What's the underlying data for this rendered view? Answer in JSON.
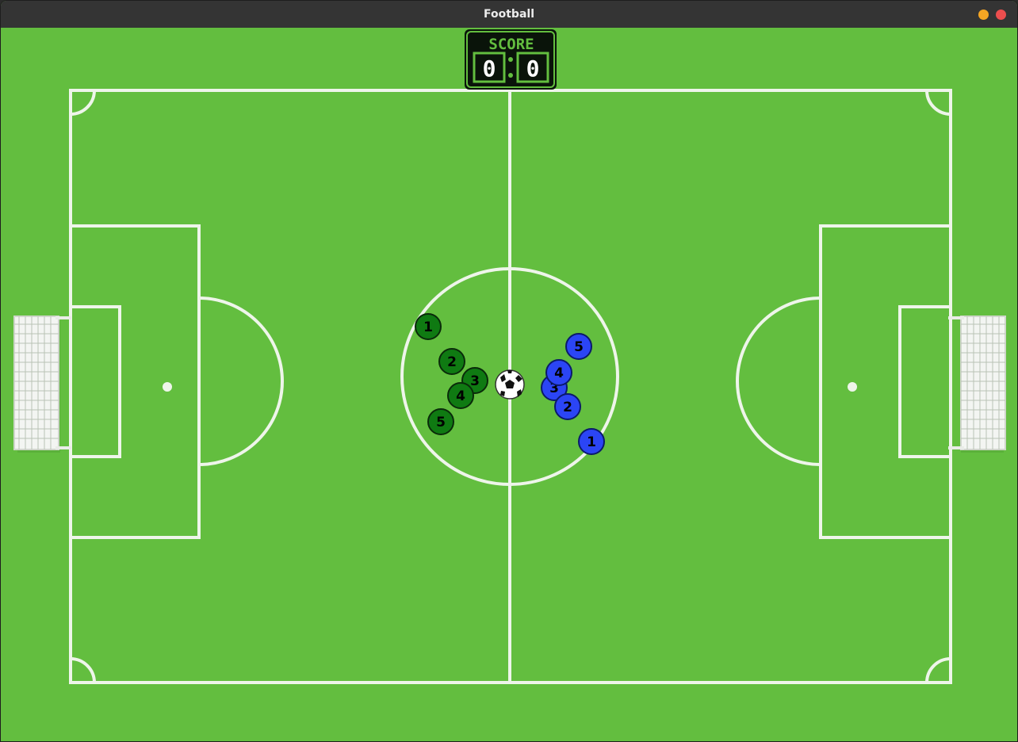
{
  "window": {
    "title": "Football",
    "controls": [
      {
        "name": "minimize",
        "color": "#f5a623"
      },
      {
        "name": "close",
        "color": "#ec4e4e"
      }
    ]
  },
  "scoreboard": {
    "label": "SCORE",
    "home": "0",
    "away": "0",
    "separator": ":"
  },
  "colors": {
    "grass": "#63be3f",
    "lines": "#eef5ea",
    "home_team": "#0f7a12",
    "away_team": "#2b45f5",
    "scoreboard_bg": "#0a140a",
    "scoreboard_accent": "#63be3f"
  },
  "teams": {
    "home": {
      "color_name": "green",
      "players": [
        {
          "number": "1"
        },
        {
          "number": "2"
        },
        {
          "number": "3"
        },
        {
          "number": "4"
        },
        {
          "number": "5"
        }
      ]
    },
    "away": {
      "color_name": "blue",
      "players": [
        {
          "number": "5"
        },
        {
          "number": "4"
        },
        {
          "number": "3"
        },
        {
          "number": "2"
        },
        {
          "number": "1"
        }
      ]
    }
  },
  "ball": {
    "icon": "soccer-ball-icon"
  },
  "goals": {
    "left": "goal-net-icon",
    "right": "goal-net-icon"
  }
}
